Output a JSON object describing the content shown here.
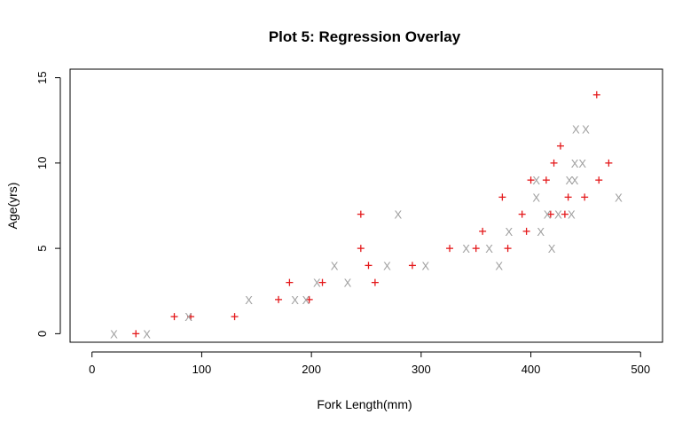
{
  "chart_data": {
    "type": "scatter",
    "title": "Plot 5: Regression Overlay",
    "xlabel": "Fork Length(mm)",
    "ylabel": "Age(yrs)",
    "xlim": [
      -20,
      520
    ],
    "ylim": [
      -0.5,
      15.5
    ],
    "xticks": [
      "0",
      "100",
      "200",
      "300",
      "400",
      "500"
    ],
    "yticks": [
      "0",
      "5",
      "10",
      "15"
    ],
    "grid": false,
    "legend": "none",
    "series": [
      {
        "marker": "+",
        "color": "#e41a1c",
        "points": [
          [
            40,
            0
          ],
          [
            75,
            1
          ],
          [
            90,
            1
          ],
          [
            130,
            1
          ],
          [
            170,
            2
          ],
          [
            180,
            3
          ],
          [
            198,
            2
          ],
          [
            210,
            3
          ],
          [
            245,
            5
          ],
          [
            245,
            7
          ],
          [
            252,
            4
          ],
          [
            258,
            3
          ],
          [
            292,
            4
          ],
          [
            326,
            5
          ],
          [
            350,
            5
          ],
          [
            356,
            6
          ],
          [
            374,
            8
          ],
          [
            379,
            5
          ],
          [
            392,
            7
          ],
          [
            396,
            6
          ],
          [
            400,
            9
          ],
          [
            414,
            9
          ],
          [
            418,
            7
          ],
          [
            421,
            10
          ],
          [
            427,
            11
          ],
          [
            431,
            7
          ],
          [
            434,
            8
          ],
          [
            449,
            8
          ],
          [
            460,
            14
          ],
          [
            462,
            9
          ],
          [
            471,
            10
          ]
        ]
      },
      {
        "marker": "X",
        "color": "#a0a0a0",
        "points": [
          [
            20,
            0
          ],
          [
            50,
            0
          ],
          [
            88,
            1
          ],
          [
            143,
            2
          ],
          [
            185,
            2
          ],
          [
            195,
            2
          ],
          [
            205,
            3
          ],
          [
            221,
            4
          ],
          [
            233,
            3
          ],
          [
            269,
            4
          ],
          [
            279,
            7
          ],
          [
            304,
            4
          ],
          [
            341,
            5
          ],
          [
            362,
            5
          ],
          [
            371,
            4
          ],
          [
            380,
            6
          ],
          [
            405,
            8
          ],
          [
            405,
            9
          ],
          [
            409,
            6
          ],
          [
            415,
            7
          ],
          [
            419,
            5
          ],
          [
            425,
            7
          ],
          [
            435,
            9
          ],
          [
            437,
            7
          ],
          [
            440,
            9
          ],
          [
            440,
            10
          ],
          [
            441,
            12
          ],
          [
            447,
            10
          ],
          [
            450,
            12
          ],
          [
            480,
            8
          ]
        ]
      }
    ]
  }
}
